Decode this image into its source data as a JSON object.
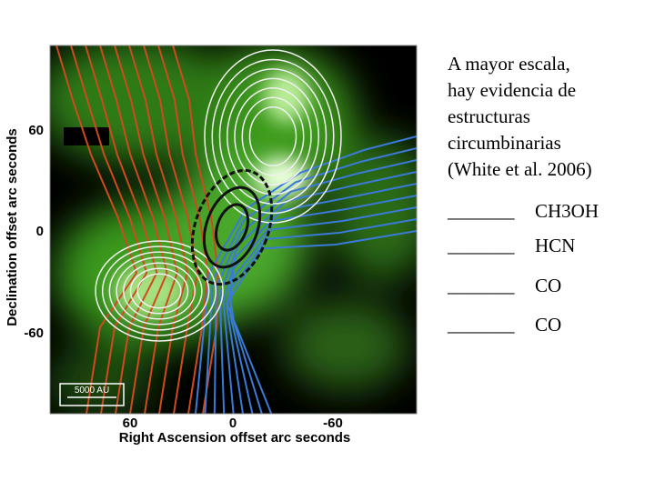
{
  "figure": {
    "y_axis_label": "Declination offset arc seconds",
    "x_axis_label": "Right Ascension offset arc seconds",
    "y_tick_labels": [
      "60",
      "0",
      "-60"
    ],
    "x_tick_labels": [
      "60",
      "0",
      "-60"
    ],
    "scale_bar_label": "5000 AU"
  },
  "text": {
    "paragraph_lines": [
      "A mayor escala,",
      "hay evidencia de",
      "estructuras",
      "circumbinarias",
      "(White et al. 2006)"
    ],
    "legend": [
      {
        "line": "_______",
        "label": "CH3OH",
        "color": "#22aa22"
      },
      {
        "line": "_______",
        "label": "HCN",
        "color": "#000000"
      },
      {
        "line": "_______",
        "label": "CO",
        "color": "#cc2200"
      },
      {
        "line": "_______",
        "label": "CO",
        "color": "#000000"
      }
    ]
  }
}
